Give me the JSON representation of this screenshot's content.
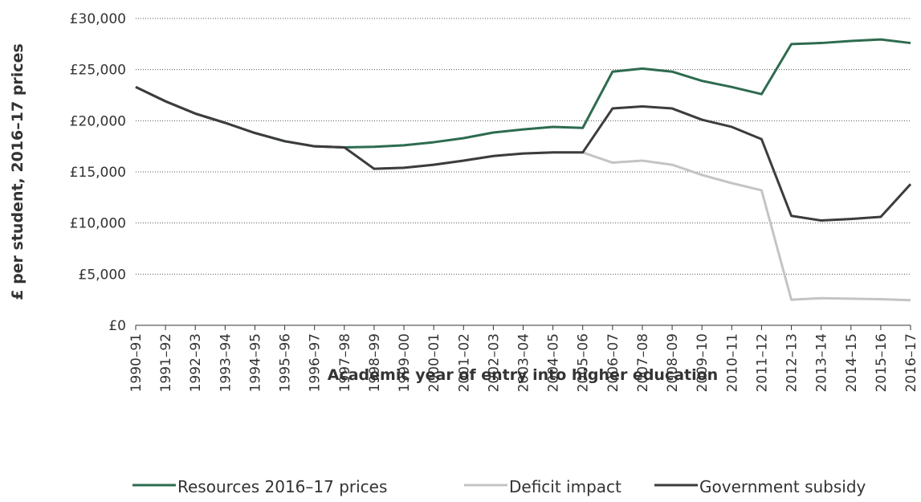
{
  "chart_data": {
    "type": "line",
    "x_label": "Academic year of entry into higher education",
    "y_label": "£ per student,  2016–17 prices",
    "categories": [
      "1990–91",
      "1991–92",
      "1992–93",
      "1993–94",
      "1994–95",
      "1995–96",
      "1996–97",
      "1997–98",
      "1998–99",
      "1999–00",
      "2000–01",
      "2001–02",
      "2002–03",
      "2003–04",
      "2004–05",
      "2005–06",
      "2006–07",
      "2007–08",
      "2008–09",
      "2009–10",
      "2010–11",
      "2011–12",
      "2012–13",
      "2013–14",
      "2014–15",
      "2015–16",
      "2016–17"
    ],
    "series": [
      {
        "name": "Resources 2016–17 prices",
        "color": "#2e6b4f",
        "values": [
          23300,
          21900,
          20700,
          19800,
          18800,
          18000,
          17500,
          17400,
          17450,
          17600,
          17900,
          18300,
          18850,
          19150,
          19400,
          19300,
          24800,
          25100,
          24800,
          23900,
          23300,
          22600,
          27500,
          27600,
          27800,
          27950,
          27600
        ]
      },
      {
        "name": "Deficit impact",
        "color": "#c4c4c4",
        "values": [
          23300,
          21900,
          20700,
          19800,
          18800,
          18000,
          17500,
          17400,
          15300,
          15400,
          15700,
          16100,
          16550,
          16800,
          16900,
          16900,
          15900,
          16100,
          15700,
          14700,
          13900,
          13200,
          2500,
          2650,
          2600,
          2550,
          2450
        ]
      },
      {
        "name": "Government subsidy",
        "color": "#3c3c3c",
        "values": [
          23300,
          21900,
          20700,
          19800,
          18800,
          18000,
          17500,
          17400,
          15300,
          15400,
          15700,
          16100,
          16550,
          16800,
          16900,
          16900,
          21200,
          21400,
          21200,
          20100,
          19400,
          18200,
          10700,
          10250,
          10400,
          10600,
          13800
        ]
      }
    ],
    "ylim": [
      0,
      30000
    ],
    "yticks": [
      {
        "value": 0,
        "label": "£0"
      },
      {
        "value": 5000,
        "label": "£5,000"
      },
      {
        "value": 10000,
        "label": "£10,000"
      },
      {
        "value": 15000,
        "label": "£15,000"
      },
      {
        "value": 20000,
        "label": "£20,000"
      },
      {
        "value": 25000,
        "label": "£25,000"
      },
      {
        "value": 30000,
        "label": "£30,000"
      }
    ],
    "grid": true,
    "legend": "bottom"
  }
}
